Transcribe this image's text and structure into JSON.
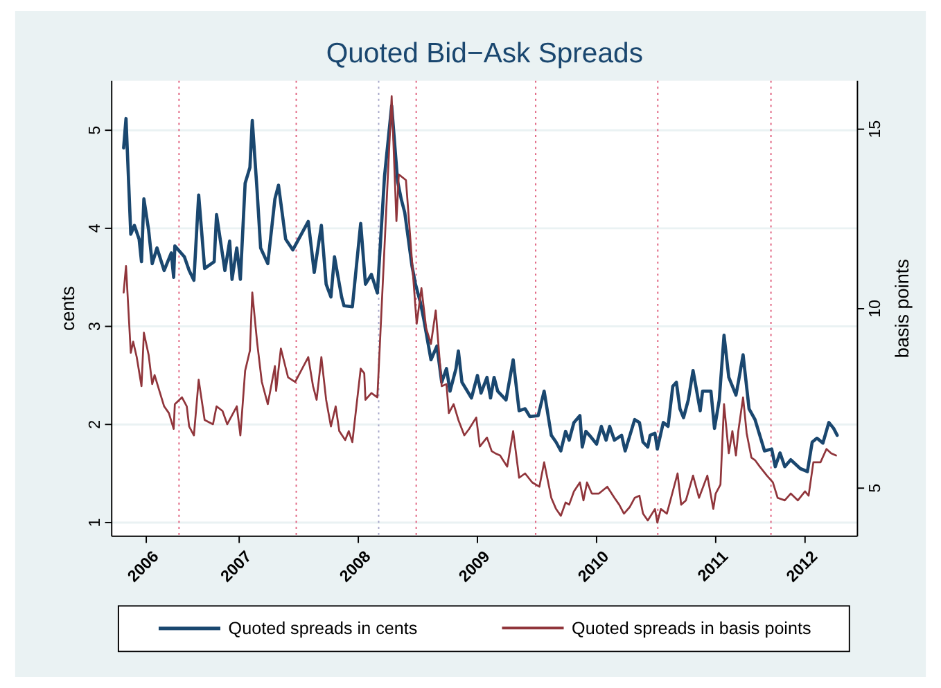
{
  "chart_data": {
    "type": "line",
    "title": "Quoted Bid−Ask Spreads",
    "ylabel": "cents",
    "y2label": "basis points",
    "xlim": [
      2005.93,
      2012.19
    ],
    "xticks": [
      {
        "value": 2006.22,
        "label": "2006"
      },
      {
        "value": 2007,
        "label": "2007"
      },
      {
        "value": 2008,
        "label": "2008"
      },
      {
        "value": 2009,
        "label": "2009"
      },
      {
        "value": 2010,
        "label": "2010"
      },
      {
        "value": 2011,
        "label": "2011"
      },
      {
        "value": 2011.75,
        "label": "2012"
      }
    ],
    "ylim": [
      0.86,
      5.505
    ],
    "yticks": [
      1,
      2,
      3,
      4,
      5
    ],
    "y2lim": [
      3.66,
      16.35
    ],
    "y2ticks": [
      5,
      10,
      15
    ],
    "grid": "y",
    "legend": "bottom",
    "line_style": "solid",
    "marker": "none",
    "ref_lines": [
      {
        "axis": "x",
        "value": 2006.495,
        "color": "#e0607e",
        "line_style": "dotted"
      },
      {
        "axis": "x",
        "value": 2007.479,
        "color": "#e0607e",
        "line_style": "dotted"
      },
      {
        "axis": "x",
        "value": 2008.171,
        "color": "#a6a6c8",
        "line_style": "dotted"
      },
      {
        "axis": "x",
        "value": 2008.486,
        "color": "#e0607e",
        "line_style": "dotted"
      },
      {
        "axis": "x",
        "value": 2009.489,
        "color": "#e0607e",
        "line_style": "dotted"
      },
      {
        "axis": "x",
        "value": 2010.514,
        "color": "#e0607e",
        "line_style": "dotted"
      },
      {
        "axis": "x",
        "value": 2011.464,
        "color": "#e0607e",
        "line_style": "dotted"
      }
    ],
    "series": [
      {
        "name": "Quoted spreads in cents",
        "color": "#1a476f",
        "x": [
          2006.03,
          2006.05,
          2006.09,
          2006.12,
          2006.16,
          2006.18,
          2006.2,
          2006.24,
          2006.27,
          2006.31,
          2006.37,
          2006.43,
          2006.45,
          2006.46,
          2006.54,
          2006.58,
          2006.62,
          2006.66,
          2006.71,
          2006.79,
          2006.81,
          2006.88,
          2006.92,
          2006.94,
          2006.98,
          2007.01,
          2007.05,
          2007.09,
          2007.11,
          2007.15,
          2007.18,
          2007.24,
          2007.3,
          2007.33,
          2007.39,
          2007.45,
          2007.58,
          2007.63,
          2007.69,
          2007.73,
          2007.77,
          2007.8,
          2007.86,
          2007.88,
          2007.95,
          2008.02,
          2008.06,
          2008.11,
          2008.16,
          2008.22,
          2008.28,
          2008.33,
          2008.36,
          2008.39,
          2008.45,
          2008.48,
          2008.52,
          2008.55,
          2008.61,
          2008.66,
          2008.7,
          2008.74,
          2008.77,
          2008.82,
          2008.84,
          2008.87,
          2008.95,
          2009,
          2009.03,
          2009.08,
          2009.11,
          2009.14,
          2009.17,
          2009.24,
          2009.3,
          2009.35,
          2009.4,
          2009.44,
          2009.51,
          2009.56,
          2009.62,
          2009.66,
          2009.7,
          2009.74,
          2009.77,
          2009.81,
          2009.86,
          2009.88,
          2009.91,
          2009.94,
          2010,
          2010.04,
          2010.08,
          2010.11,
          2010.15,
          2010.21,
          2010.24,
          2010.28,
          2010.32,
          2010.36,
          2010.39,
          2010.43,
          2010.45,
          2010.49,
          2010.51,
          2010.56,
          2010.6,
          2010.64,
          2010.67,
          2010.7,
          2010.73,
          2010.77,
          2010.81,
          2010.87,
          2010.89,
          2010.96,
          2010.99,
          2011.03,
          2011.07,
          2011.11,
          2011.17,
          2011.19,
          2011.23,
          2011.28,
          2011.33,
          2011.41,
          2011.47,
          2011.5,
          2011.54,
          2011.58,
          2011.63,
          2011.71,
          2011.77,
          2011.81,
          2011.85,
          2011.9,
          2011.95,
          2011.99,
          2012.02
        ],
        "values": [
          4.82,
          5.12,
          3.94,
          4.03,
          3.89,
          3.66,
          4.3,
          3.98,
          3.64,
          3.8,
          3.57,
          3.75,
          3.5,
          3.82,
          3.71,
          3.57,
          3.47,
          4.34,
          3.59,
          3.66,
          4.14,
          3.57,
          3.87,
          3.48,
          3.8,
          3.48,
          4.46,
          4.62,
          5.1,
          4.39,
          3.8,
          3.64,
          4.3,
          4.44,
          3.89,
          3.78,
          4.07,
          3.55,
          4.03,
          3.43,
          3.3,
          3.71,
          3.3,
          3.21,
          3.2,
          4.05,
          3.43,
          3.53,
          3.34,
          4.53,
          5.25,
          4.48,
          4.3,
          4.16,
          3.62,
          3.43,
          3.25,
          3.07,
          2.66,
          2.8,
          2.43,
          2.57,
          2.34,
          2.57,
          2.75,
          2.43,
          2.27,
          2.5,
          2.32,
          2.48,
          2.27,
          2.48,
          2.34,
          2.25,
          2.66,
          2.14,
          2.16,
          2.08,
          2.09,
          2.34,
          1.89,
          1.82,
          1.73,
          1.93,
          1.84,
          2.02,
          2.09,
          1.77,
          1.93,
          1.89,
          1.8,
          1.98,
          1.84,
          1.98,
          1.84,
          1.89,
          1.73,
          1.89,
          2.05,
          2.02,
          1.82,
          1.77,
          1.89,
          1.91,
          1.75,
          2.02,
          1.98,
          2.39,
          2.43,
          2.16,
          2.07,
          2.25,
          2.55,
          2.14,
          2.34,
          2.34,
          1.96,
          2.25,
          2.91,
          2.48,
          2.3,
          2.43,
          2.71,
          2.16,
          2.05,
          1.73,
          1.75,
          1.57,
          1.71,
          1.57,
          1.64,
          1.55,
          1.52,
          1.82,
          1.86,
          1.81,
          2.02,
          1.96,
          1.89
        ]
      },
      {
        "name": "Quoted spreads in basis points",
        "color": "#90353b",
        "axis": "y2",
        "x": [
          2006.03,
          2006.05,
          2006.09,
          2006.11,
          2006.14,
          2006.18,
          2006.2,
          2006.24,
          2006.27,
          2006.29,
          2006.33,
          2006.37,
          2006.41,
          2006.45,
          2006.46,
          2006.52,
          2006.56,
          2006.58,
          2006.62,
          2006.66,
          2006.71,
          2006.78,
          2006.81,
          2006.86,
          2006.9,
          2006.98,
          2007.01,
          2007.05,
          2007.09,
          2007.11,
          2007.15,
          2007.19,
          2007.24,
          2007.3,
          2007.31,
          2007.35,
          2007.41,
          2007.47,
          2007.58,
          2007.62,
          2007.65,
          2007.69,
          2007.73,
          2007.77,
          2007.81,
          2007.84,
          2007.89,
          2007.92,
          2007.95,
          2008.02,
          2008.05,
          2008.06,
          2008.11,
          2008.16,
          2008.28,
          2008.32,
          2008.34,
          2008.4,
          2008.49,
          2008.53,
          2008.57,
          2008.61,
          2008.65,
          2008.7,
          2008.74,
          2008.76,
          2008.8,
          2008.84,
          2008.89,
          2008.93,
          2008.99,
          2009.02,
          2009.08,
          2009.12,
          2009.15,
          2009.19,
          2009.25,
          2009.3,
          2009.35,
          2009.4,
          2009.46,
          2009.52,
          2009.56,
          2009.62,
          2009.66,
          2009.7,
          2009.74,
          2009.77,
          2009.81,
          2009.86,
          2009.89,
          2009.92,
          2009.96,
          2010.02,
          2010.09,
          2010.15,
          2010.19,
          2010.23,
          2010.28,
          2010.32,
          2010.36,
          2010.39,
          2010.43,
          2010.49,
          2010.51,
          2010.54,
          2010.59,
          2010.62,
          2010.68,
          2010.71,
          2010.75,
          2010.81,
          2010.86,
          2010.93,
          2010.98,
          2011,
          2011.04,
          2011.07,
          2011.11,
          2011.14,
          2011.17,
          2011.19,
          2011.23,
          2011.26,
          2011.3,
          2011.33,
          2011.37,
          2011.43,
          2011.48,
          2011.52,
          2011.58,
          2011.63,
          2011.69,
          2011.75,
          2011.78,
          2011.82,
          2011.88,
          2011.93,
          2011.97,
          2012.01
        ],
        "values": [
          10.45,
          11.19,
          8.77,
          9.08,
          8.65,
          7.84,
          9.33,
          8.71,
          7.9,
          8.15,
          7.71,
          7.28,
          7.09,
          6.65,
          7.34,
          7.53,
          7.28,
          6.72,
          6.47,
          8.02,
          6.9,
          6.78,
          7.28,
          7.15,
          6.78,
          7.28,
          6.47,
          8.27,
          8.83,
          10.45,
          9.08,
          7.96,
          7.34,
          8.4,
          7.71,
          8.89,
          8.09,
          7.96,
          8.65,
          7.84,
          7.46,
          8.65,
          7.46,
          6.72,
          7.28,
          6.59,
          6.34,
          6.59,
          6.28,
          8.33,
          8.2,
          7.46,
          7.65,
          7.53,
          15.92,
          12.44,
          13.74,
          13.58,
          9.58,
          10.57,
          9.45,
          9.02,
          9.95,
          7.84,
          7.9,
          7.09,
          7.34,
          6.9,
          6.47,
          6.65,
          6.97,
          6.16,
          6.41,
          6.03,
          5.97,
          5.91,
          5.6,
          6.59,
          5.29,
          5.41,
          5.16,
          5.04,
          5.72,
          4.73,
          4.42,
          4.23,
          4.6,
          4.54,
          4.91,
          5.16,
          4.66,
          5.16,
          4.85,
          4.85,
          5.04,
          4.73,
          4.54,
          4.29,
          4.48,
          4.73,
          4.79,
          4.29,
          4.1,
          4.42,
          4.04,
          4.42,
          4.29,
          4.66,
          5.41,
          4.54,
          4.66,
          5.35,
          4.73,
          5.35,
          4.42,
          4.85,
          5.1,
          7.34,
          5.97,
          6.59,
          5.91,
          6.59,
          7.53,
          6.53,
          5.85,
          5.78,
          5.6,
          5.35,
          5.16,
          4.73,
          4.66,
          4.85,
          4.66,
          4.91,
          4.79,
          5.72,
          5.72,
          6.09,
          5.97,
          5.91
        ]
      }
    ]
  }
}
